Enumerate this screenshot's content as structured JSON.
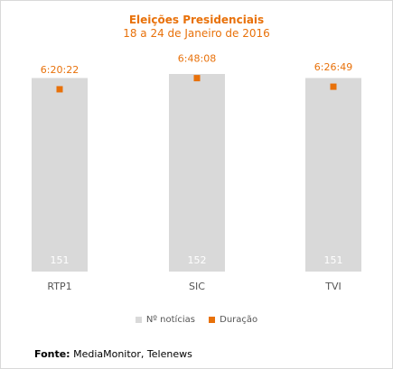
{
  "title": "Eleições Presidenciais",
  "subtitle": "18 a 24 de Janeiro de 2016",
  "colors": {
    "bar": "#d9d9d9",
    "marker": "#e8710a",
    "title": "#e8710a"
  },
  "chart_data": {
    "type": "bar",
    "categories": [
      "RTP1",
      "SIC",
      "TVI"
    ],
    "series": [
      {
        "name": "Nº notícias",
        "type": "bar",
        "values": [
          151,
          152,
          151
        ],
        "labels": [
          "151",
          "152",
          "151"
        ]
      },
      {
        "name": "Duração",
        "type": "scatter",
        "values_hours": [
          6.3394,
          6.8022,
          6.4469
        ],
        "labels": [
          "6:20:22",
          "6:48:08",
          "6:26:49"
        ]
      }
    ],
    "legend_position": "bottom",
    "grid": false
  },
  "source": {
    "label": "Fonte:",
    "text": "MediaMonitor, Telenews"
  }
}
